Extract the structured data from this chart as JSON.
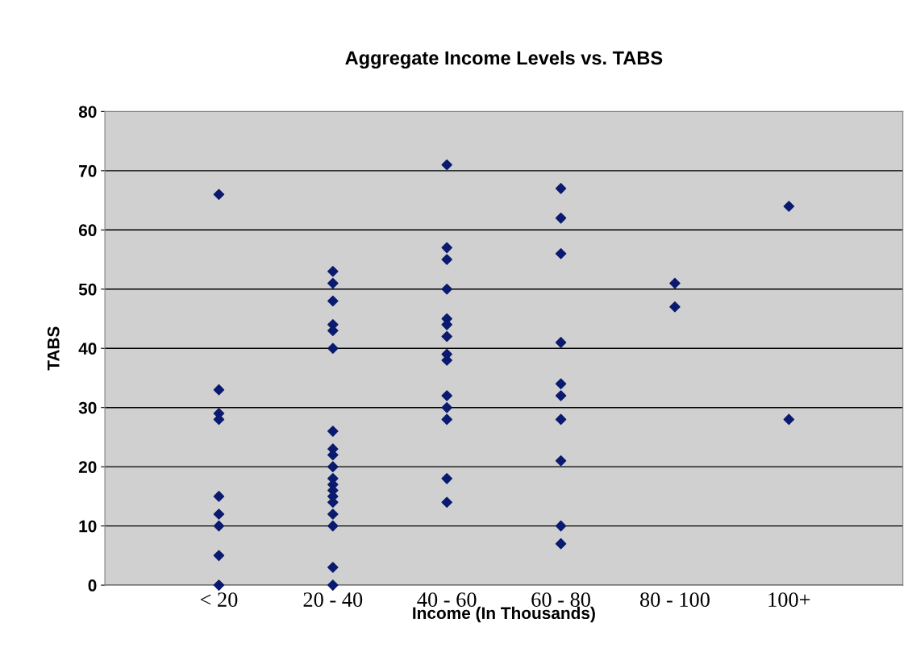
{
  "chart_data": {
    "type": "scatter",
    "title": "Aggregate Income Levels vs. TABS",
    "xlabel": "Income (In Thousands)",
    "ylabel": "TABS",
    "categories": [
      "< 20",
      "20 - 40",
      "40 - 60",
      "60 - 80",
      "80 - 100",
      "100+"
    ],
    "series": [
      {
        "color": "#0a1a6e",
        "x": [
          "< 20",
          "< 20",
          "< 20",
          "< 20",
          "< 20",
          "< 20",
          "< 20",
          "< 20",
          "< 20",
          "20 - 40",
          "20 - 40",
          "20 - 40",
          "20 - 40",
          "20 - 40",
          "20 - 40",
          "20 - 40",
          "20 - 40",
          "20 - 40",
          "20 - 40",
          "20 - 40",
          "20 - 40",
          "20 - 40",
          "20 - 40",
          "20 - 40",
          "20 - 40",
          "20 - 40",
          "20 - 40",
          "20 - 40",
          "40 - 60",
          "40 - 60",
          "40 - 60",
          "40 - 60",
          "40 - 60",
          "40 - 60",
          "40 - 60",
          "40 - 60",
          "40 - 60",
          "40 - 60",
          "40 - 60",
          "40 - 60",
          "40 - 60",
          "40 - 60",
          "60 - 80",
          "60 - 80",
          "60 - 80",
          "60 - 80",
          "60 - 80",
          "60 - 80",
          "60 - 80",
          "60 - 80",
          "60 - 80",
          "60 - 80",
          "80 - 100",
          "80 - 100",
          "100+",
          "100+"
        ],
        "values": [
          66,
          33,
          29,
          28,
          15,
          12,
          10,
          5,
          0,
          53,
          51,
          48,
          44,
          43,
          40,
          26,
          23,
          22,
          20,
          18,
          17,
          16,
          15,
          14,
          12,
          10,
          3,
          0,
          71,
          57,
          55,
          50,
          45,
          44,
          42,
          39,
          38,
          32,
          30,
          28,
          18,
          14,
          67,
          62,
          56,
          41,
          34,
          32,
          28,
          21,
          10,
          7,
          51,
          47,
          64,
          28
        ]
      }
    ],
    "ylim": [
      0,
      80
    ],
    "yticks": [
      0,
      10,
      20,
      30,
      40,
      50,
      60,
      70,
      80
    ],
    "grid": "y",
    "marker": "diamond"
  }
}
